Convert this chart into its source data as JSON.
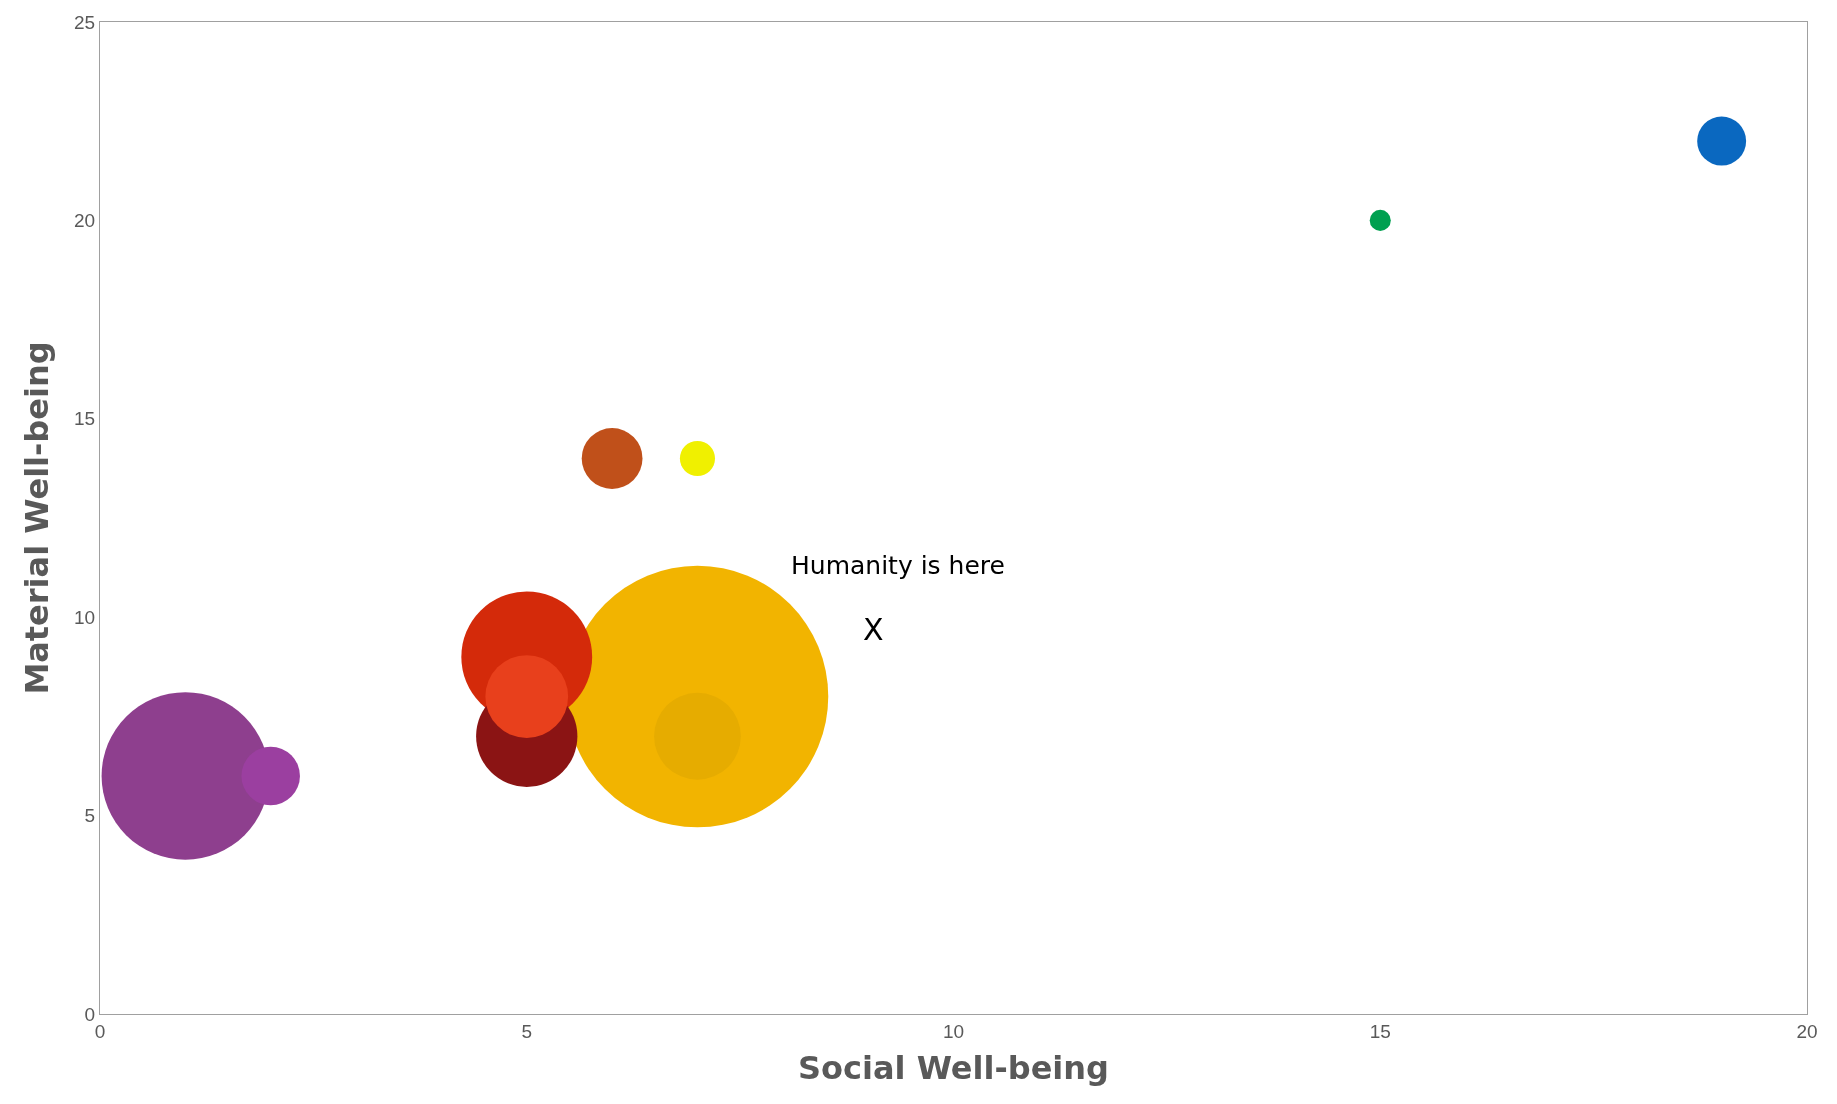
{
  "chart_data": {
    "type": "bubble",
    "xlabel": "Social Well-being",
    "ylabel": "Material Well-being",
    "x": [
      7,
      1,
      5,
      5,
      7,
      5,
      2,
      6,
      19,
      7,
      15
    ],
    "values": [
      8,
      6,
      9,
      7,
      7,
      8,
      6,
      14,
      22,
      14,
      20
    ],
    "sizes": [
      1,
      0.41,
      0.25,
      0.15,
      0.11,
      0.1,
      0.05,
      0.054,
      0.035,
      0.018,
      0.0065
    ],
    "colors": [
      "#f2b400",
      "#8e3f8e",
      "#d42a0a",
      "#8b1414",
      "#e6ac00",
      "#e8401c",
      "#9b3fa0",
      "#c0501a",
      "#0a68c0",
      "#f0f000",
      "#00a050"
    ],
    "xlim": [
      0,
      20
    ],
    "xticks": [
      0,
      5,
      10,
      15,
      20
    ],
    "ylim": [
      0,
      25
    ],
    "yticks": [
      0,
      5,
      10,
      15,
      20,
      25
    ],
    "annotations": [
      "Humanity is here",
      "X"
    ],
    "legend": false
  }
}
